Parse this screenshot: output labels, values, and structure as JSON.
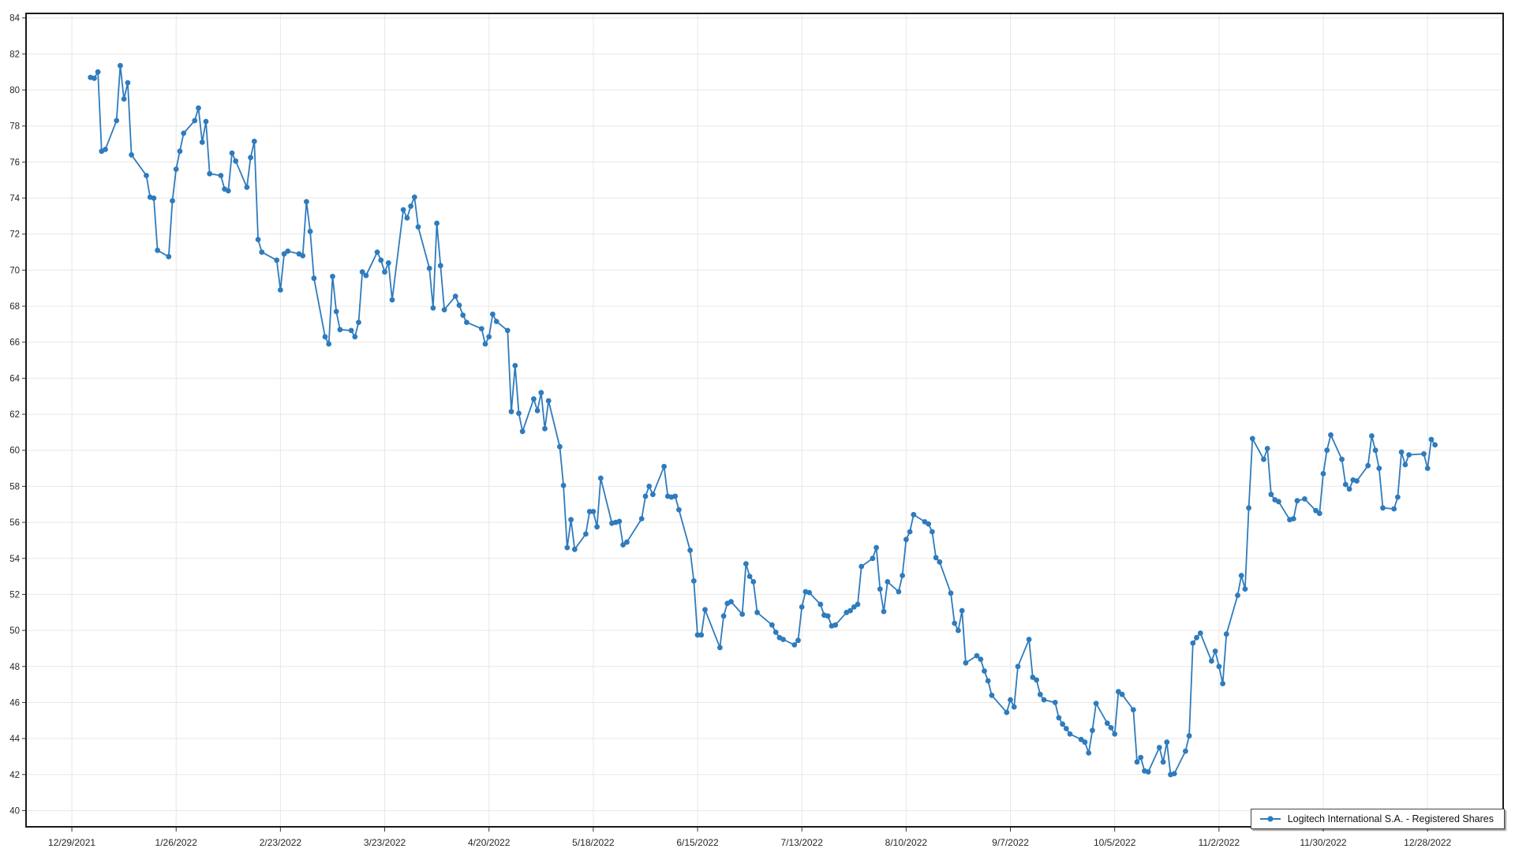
{
  "window": {
    "background": "#ffffff"
  },
  "chart_data": {
    "type": "line",
    "title": "",
    "xlabel": "",
    "ylabel": "",
    "grid": true,
    "legend_position": "bottom-right",
    "ylim": [
      40,
      84
    ],
    "y_tick_step": 2,
    "x_axis": {
      "origin_date": "2021-12-29",
      "tick_interval_days": 28,
      "tick_labels": [
        "12/29/2021",
        "1/26/2022",
        "2/23/2022",
        "3/23/2022",
        "4/20/2022",
        "5/18/2022",
        "6/15/2022",
        "7/13/2022",
        "8/10/2022",
        "9/7/2022",
        "10/5/2022",
        "11/2/2022",
        "11/30/2022",
        "12/28/2022"
      ]
    },
    "series": [
      {
        "name": "Logitech International S.A. - Registered Shares",
        "color": "#2e7bbd",
        "marker": "circle",
        "start_date": "2022-01-03",
        "frequency": "trading-days",
        "skip_dates": [
          "2022-01-17",
          "2022-02-21",
          "2022-04-15",
          "2022-05-30",
          "2022-06-20",
          "2022-07-04",
          "2022-09-05",
          "2022-11-24",
          "2022-12-26"
        ],
        "values": [
          80.7,
          80.65,
          81.0,
          76.6,
          76.7,
          78.3,
          81.35,
          79.5,
          80.4,
          76.4,
          75.25,
          74.05,
          74.0,
          71.1,
          70.75,
          73.85,
          75.6,
          76.6,
          77.6,
          78.3,
          79.0,
          77.1,
          78.25,
          75.35,
          75.25,
          74.5,
          74.4,
          76.5,
          76.05,
          74.6,
          76.25,
          77.15,
          71.7,
          71.0,
          70.55,
          68.9,
          70.9,
          71.05,
          70.9,
          70.8,
          73.8,
          72.15,
          69.55,
          66.3,
          65.9,
          69.65,
          67.7,
          66.7,
          66.65,
          66.3,
          67.1,
          69.9,
          69.7,
          71.0,
          70.55,
          69.9,
          70.4,
          68.35,
          73.35,
          72.9,
          73.55,
          74.05,
          72.4,
          70.1,
          67.9,
          72.6,
          70.25,
          67.8,
          68.55,
          68.05,
          67.5,
          67.1,
          66.75,
          65.9,
          66.3,
          67.55,
          67.15,
          66.65,
          62.15,
          64.7,
          62.05,
          61.05,
          62.85,
          62.2,
          63.2,
          61.2,
          62.75,
          60.2,
          58.05,
          54.6,
          56.15,
          54.5,
          55.35,
          56.6,
          56.6,
          55.75,
          58.45,
          55.95,
          56.0,
          56.05,
          54.75,
          54.9,
          56.2,
          57.45,
          58.0,
          57.55,
          59.1,
          57.45,
          57.4,
          57.45,
          56.7,
          54.45,
          52.75,
          49.75,
          49.75,
          51.15,
          49.05,
          50.8,
          51.5,
          51.6,
          50.9,
          53.7,
          53.0,
          52.7,
          51.0,
          50.3,
          49.9,
          49.6,
          49.5,
          49.2,
          49.45,
          51.3,
          52.15,
          52.1,
          51.45,
          50.85,
          50.8,
          50.25,
          50.3,
          51.0,
          51.1,
          51.3,
          51.45,
          53.55,
          54.0,
          54.6,
          52.3,
          51.05,
          52.7,
          52.15,
          53.05,
          55.05,
          55.48,
          56.43,
          56.03,
          55.91,
          55.48,
          54.04,
          53.8,
          52.07,
          50.4,
          50.0,
          51.1,
          48.2,
          48.6,
          48.4,
          47.75,
          47.2,
          46.4,
          45.45,
          46.15,
          45.75,
          48.0,
          49.5,
          47.4,
          47.25,
          46.45,
          46.15,
          46.0,
          45.15,
          44.8,
          44.55,
          44.25,
          43.95,
          43.8,
          43.2,
          44.45,
          45.95,
          44.85,
          44.6,
          44.25,
          46.6,
          46.45,
          45.6,
          42.7,
          42.95,
          42.2,
          42.15,
          43.5,
          42.7,
          43.8,
          42.0,
          42.05,
          43.3,
          44.15,
          49.3,
          49.6,
          49.85,
          48.3,
          48.85,
          48.0,
          47.05,
          49.8,
          51.95,
          53.05,
          52.3,
          56.8,
          60.65,
          59.5,
          60.1,
          57.55,
          57.25,
          57.15,
          56.15,
          56.2,
          57.2,
          57.3,
          56.65,
          56.5,
          58.7,
          60.0,
          60.85,
          59.5,
          58.1,
          57.85,
          58.35,
          58.3,
          59.15,
          60.8,
          60.0,
          59.0,
          56.8,
          56.75,
          57.4,
          59.9,
          59.2,
          59.75,
          59.8,
          59.0,
          60.6,
          60.3
        ]
      }
    ]
  },
  "legend": {
    "label": "Logitech International S.A. - Registered Shares"
  },
  "colors": {
    "line": "#2e7bbd",
    "grid": "#e7e7e7",
    "axis_border": "#1a1a1a",
    "tick": "#333333",
    "label_text": "#262626",
    "legend_border": "#464646"
  }
}
